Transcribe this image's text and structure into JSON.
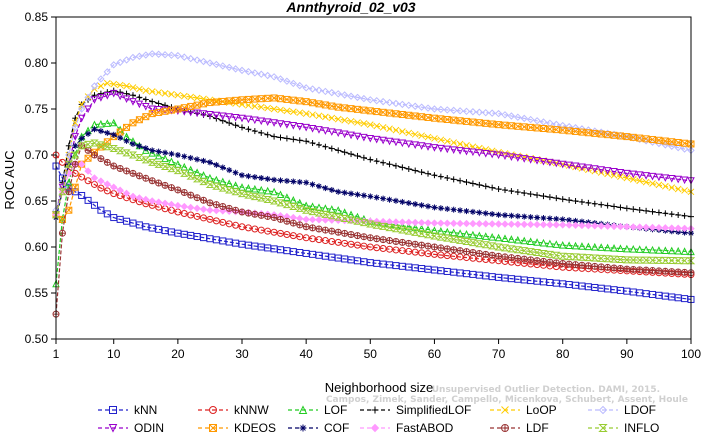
{
  "chart_data": {
    "type": "line",
    "title": "Annthyroid_02_v03",
    "xlabel": "Neighborhood size",
    "ylabel": "ROC AUC",
    "xlim": [
      1,
      100
    ],
    "ylim": [
      0.5,
      0.85
    ],
    "x_ticks": [
      1,
      10,
      20,
      30,
      40,
      50,
      60,
      70,
      80,
      90,
      100
    ],
    "y_ticks": [
      0.5,
      0.55,
      0.6,
      0.65,
      0.7,
      0.75,
      0.8,
      0.85
    ],
    "watermark_lines": [
      "Unsupervised Outlier Detection. DAMI, 2015.",
      "Campos, Zimek, Sander, Campello, Micenkova, Schubert, Assent, Houle"
    ],
    "legend_position": "bottom",
    "series": [
      {
        "name": "kNN",
        "color": "#2222cc",
        "marker": "square",
        "points": [
          [
            1,
            0.688
          ],
          [
            2,
            0.675
          ],
          [
            3,
            0.665
          ],
          [
            4,
            0.66
          ],
          [
            5,
            0.656
          ],
          [
            8,
            0.64
          ],
          [
            10,
            0.632
          ],
          [
            15,
            0.622
          ],
          [
            20,
            0.615
          ],
          [
            30,
            0.603
          ],
          [
            40,
            0.593
          ],
          [
            50,
            0.583
          ],
          [
            60,
            0.575
          ],
          [
            70,
            0.567
          ],
          [
            80,
            0.56
          ],
          [
            90,
            0.552
          ],
          [
            100,
            0.543
          ]
        ]
      },
      {
        "name": "kNNW",
        "color": "#dd2222",
        "marker": "circle",
        "points": [
          [
            1,
            0.7
          ],
          [
            2,
            0.692
          ],
          [
            3,
            0.685
          ],
          [
            4,
            0.68
          ],
          [
            5,
            0.676
          ],
          [
            8,
            0.664
          ],
          [
            10,
            0.658
          ],
          [
            15,
            0.647
          ],
          [
            20,
            0.638
          ],
          [
            30,
            0.622
          ],
          [
            40,
            0.61
          ],
          [
            50,
            0.6
          ],
          [
            60,
            0.592
          ],
          [
            70,
            0.585
          ],
          [
            80,
            0.578
          ],
          [
            90,
            0.574
          ],
          [
            100,
            0.57
          ]
        ]
      },
      {
        "name": "LOF",
        "color": "#22cc22",
        "marker": "triangle-up",
        "points": [
          [
            1,
            0.56
          ],
          [
            2,
            0.63
          ],
          [
            3,
            0.67
          ],
          [
            4,
            0.7
          ],
          [
            5,
            0.72
          ],
          [
            7,
            0.733
          ],
          [
            10,
            0.735
          ],
          [
            12,
            0.72
          ],
          [
            15,
            0.705
          ],
          [
            20,
            0.69
          ],
          [
            25,
            0.675
          ],
          [
            30,
            0.665
          ],
          [
            35,
            0.66
          ],
          [
            40,
            0.645
          ],
          [
            45,
            0.64
          ],
          [
            50,
            0.628
          ],
          [
            60,
            0.618
          ],
          [
            70,
            0.61
          ],
          [
            80,
            0.602
          ],
          [
            90,
            0.598
          ],
          [
            100,
            0.595
          ]
        ]
      },
      {
        "name": "SimplifiedLOF",
        "color": "#000000",
        "marker": "plus",
        "points": [
          [
            1,
            0.635
          ],
          [
            2,
            0.67
          ],
          [
            3,
            0.71
          ],
          [
            4,
            0.74
          ],
          [
            5,
            0.755
          ],
          [
            7,
            0.765
          ],
          [
            10,
            0.77
          ],
          [
            13,
            0.765
          ],
          [
            16,
            0.758
          ],
          [
            20,
            0.75
          ],
          [
            25,
            0.742
          ],
          [
            30,
            0.73
          ],
          [
            35,
            0.72
          ],
          [
            40,
            0.715
          ],
          [
            50,
            0.695
          ],
          [
            60,
            0.678
          ],
          [
            70,
            0.663
          ],
          [
            80,
            0.652
          ],
          [
            90,
            0.642
          ],
          [
            100,
            0.633
          ]
        ]
      },
      {
        "name": "LoOP",
        "color": "#ffcc00",
        "marker": "x",
        "points": [
          [
            1,
            0.635
          ],
          [
            2,
            0.665
          ],
          [
            3,
            0.7
          ],
          [
            4,
            0.735
          ],
          [
            5,
            0.755
          ],
          [
            7,
            0.772
          ],
          [
            9,
            0.778
          ],
          [
            12,
            0.775
          ],
          [
            15,
            0.77
          ],
          [
            20,
            0.765
          ],
          [
            30,
            0.755
          ],
          [
            40,
            0.745
          ],
          [
            50,
            0.733
          ],
          [
            60,
            0.718
          ],
          [
            70,
            0.703
          ],
          [
            80,
            0.69
          ],
          [
            90,
            0.675
          ],
          [
            100,
            0.66
          ]
        ]
      },
      {
        "name": "LDOF",
        "color": "#bbbbff",
        "marker": "diamond",
        "points": [
          [
            1,
            0.64
          ],
          [
            2,
            0.665
          ],
          [
            3,
            0.7
          ],
          [
            4,
            0.73
          ],
          [
            5,
            0.75
          ],
          [
            7,
            0.775
          ],
          [
            10,
            0.798
          ],
          [
            13,
            0.806
          ],
          [
            16,
            0.81
          ],
          [
            20,
            0.808
          ],
          [
            25,
            0.8
          ],
          [
            30,
            0.792
          ],
          [
            35,
            0.785
          ],
          [
            40,
            0.773
          ],
          [
            50,
            0.76
          ],
          [
            60,
            0.75
          ],
          [
            70,
            0.745
          ],
          [
            80,
            0.732
          ],
          [
            90,
            0.72
          ],
          [
            100,
            0.705
          ]
        ]
      },
      {
        "name": "ODIN",
        "color": "#9900cc",
        "marker": "triangle-down",
        "points": [
          [
            1,
            0.635
          ],
          [
            2,
            0.665
          ],
          [
            3,
            0.69
          ],
          [
            4,
            0.72
          ],
          [
            5,
            0.74
          ],
          [
            7,
            0.76
          ],
          [
            10,
            0.767
          ],
          [
            13,
            0.758
          ],
          [
            16,
            0.75
          ],
          [
            20,
            0.748
          ],
          [
            30,
            0.74
          ],
          [
            40,
            0.73
          ],
          [
            50,
            0.718
          ],
          [
            60,
            0.708
          ],
          [
            70,
            0.7
          ],
          [
            80,
            0.69
          ],
          [
            90,
            0.68
          ],
          [
            100,
            0.672
          ]
        ]
      },
      {
        "name": "KDEOS",
        "color": "#ff9900",
        "marker": "square-x",
        "points": [
          [
            1,
            0.635
          ],
          [
            2,
            0.63
          ],
          [
            3,
            0.64
          ],
          [
            4,
            0.665
          ],
          [
            5,
            0.69
          ],
          [
            7,
            0.703
          ],
          [
            10,
            0.72
          ],
          [
            13,
            0.735
          ],
          [
            16,
            0.745
          ],
          [
            20,
            0.75
          ],
          [
            25,
            0.757
          ],
          [
            30,
            0.76
          ],
          [
            35,
            0.762
          ],
          [
            40,
            0.758
          ],
          [
            45,
            0.752
          ],
          [
            50,
            0.748
          ],
          [
            60,
            0.74
          ],
          [
            70,
            0.733
          ],
          [
            80,
            0.727
          ],
          [
            90,
            0.72
          ],
          [
            100,
            0.712
          ]
        ]
      },
      {
        "name": "COF",
        "color": "#000066",
        "marker": "asterisk",
        "points": [
          [
            1,
            0.632
          ],
          [
            2,
            0.66
          ],
          [
            3,
            0.69
          ],
          [
            4,
            0.71
          ],
          [
            5,
            0.718
          ],
          [
            7,
            0.728
          ],
          [
            10,
            0.722
          ],
          [
            13,
            0.712
          ],
          [
            16,
            0.705
          ],
          [
            20,
            0.7
          ],
          [
            25,
            0.692
          ],
          [
            30,
            0.678
          ],
          [
            35,
            0.673
          ],
          [
            40,
            0.67
          ],
          [
            45,
            0.66
          ],
          [
            50,
            0.655
          ],
          [
            60,
            0.643
          ],
          [
            70,
            0.635
          ],
          [
            80,
            0.63
          ],
          [
            90,
            0.622
          ],
          [
            100,
            0.615
          ]
        ]
      },
      {
        "name": "FastABOD",
        "color": "#ff99ff",
        "marker": "diamond-filled",
        "points": [
          [
            1,
            0.635
          ],
          [
            2,
            0.66
          ],
          [
            3,
            0.68
          ],
          [
            4,
            0.69
          ],
          [
            5,
            0.69
          ],
          [
            7,
            0.675
          ],
          [
            10,
            0.665
          ],
          [
            13,
            0.655
          ],
          [
            16,
            0.65
          ],
          [
            20,
            0.645
          ],
          [
            25,
            0.64
          ],
          [
            30,
            0.638
          ],
          [
            35,
            0.635
          ],
          [
            40,
            0.63
          ],
          [
            50,
            0.628
          ],
          [
            60,
            0.626
          ],
          [
            70,
            0.625
          ],
          [
            80,
            0.624
          ],
          [
            90,
            0.622
          ],
          [
            100,
            0.62
          ]
        ]
      },
      {
        "name": "LDF",
        "color": "#993333",
        "marker": "circle-plus",
        "points": [
          [
            1,
            0.527
          ],
          [
            2,
            0.615
          ],
          [
            3,
            0.66
          ],
          [
            4,
            0.69
          ],
          [
            5,
            0.71
          ],
          [
            7,
            0.7
          ],
          [
            10,
            0.688
          ],
          [
            13,
            0.68
          ],
          [
            16,
            0.672
          ],
          [
            20,
            0.662
          ],
          [
            25,
            0.648
          ],
          [
            30,
            0.638
          ],
          [
            35,
            0.632
          ],
          [
            40,
            0.622
          ],
          [
            50,
            0.61
          ],
          [
            60,
            0.6
          ],
          [
            70,
            0.59
          ],
          [
            80,
            0.582
          ],
          [
            90,
            0.576
          ],
          [
            100,
            0.572
          ]
        ]
      },
      {
        "name": "INFLO",
        "color": "#99cc33",
        "marker": "hourglass",
        "points": [
          [
            1,
            0.635
          ],
          [
            2,
            0.66
          ],
          [
            3,
            0.69
          ],
          [
            4,
            0.7
          ],
          [
            5,
            0.71
          ],
          [
            7,
            0.713
          ],
          [
            10,
            0.707
          ],
          [
            13,
            0.7
          ],
          [
            16,
            0.692
          ],
          [
            20,
            0.683
          ],
          [
            25,
            0.668
          ],
          [
            30,
            0.658
          ],
          [
            35,
            0.65
          ],
          [
            40,
            0.64
          ],
          [
            50,
            0.625
          ],
          [
            60,
            0.612
          ],
          [
            70,
            0.6
          ],
          [
            80,
            0.59
          ],
          [
            90,
            0.586
          ],
          [
            100,
            0.585
          ]
        ]
      }
    ]
  }
}
